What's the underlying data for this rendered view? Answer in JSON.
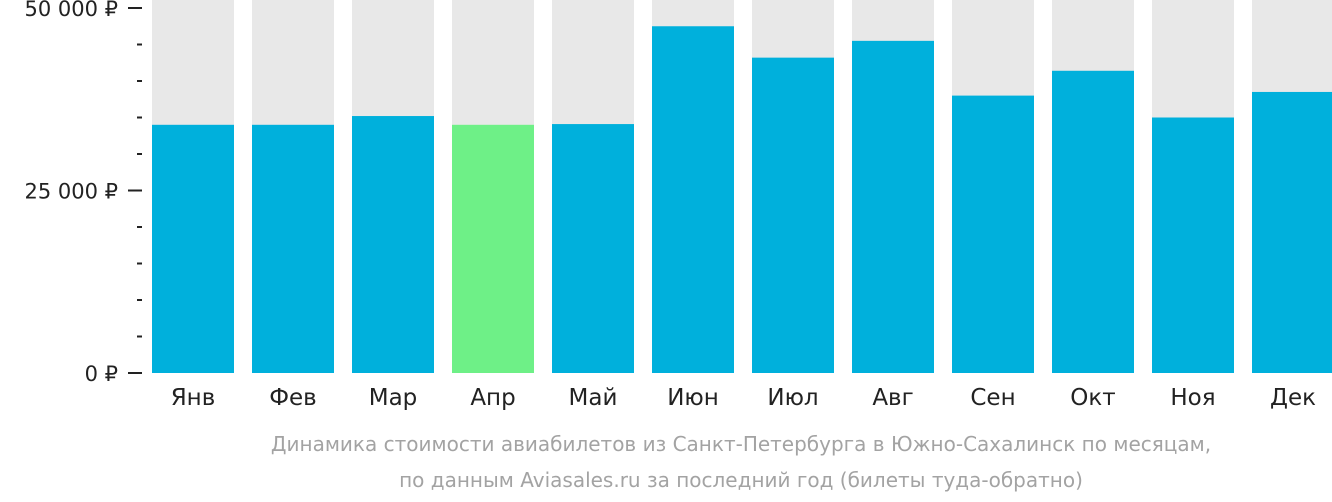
{
  "chart_data": {
    "type": "bar",
    "categories": [
      "Янв",
      "Фев",
      "Мар",
      "Апр",
      "Май",
      "Июн",
      "Июл",
      "Авг",
      "Сен",
      "Окт",
      "Ноя",
      "Дек"
    ],
    "values": [
      34000,
      34000,
      35200,
      34000,
      34100,
      47500,
      43200,
      45500,
      38000,
      41400,
      35000,
      38500
    ],
    "ylim": [
      0,
      50000
    ],
    "yticks": [
      0,
      25000,
      50000
    ],
    "ytick_labels": [
      "0 ₽",
      "25 000 ₽",
      "50 000 ₽"
    ],
    "minor_ticks_between": 4,
    "highlight_index": 3,
    "colors": {
      "bar": "#00b0dc",
      "highlight": "#6ef087",
      "background_bar": "#e8e8e8",
      "axis": "#222222"
    },
    "grid": false,
    "legend": "none"
  },
  "caption": {
    "line1": "Динамика стоимости авиабилетов из Санкт-Петербурга в Южно-Сахалинск по месяцам,",
    "line2": "по данным Aviasales.ru за последний год (билеты туда-обратно)"
  }
}
